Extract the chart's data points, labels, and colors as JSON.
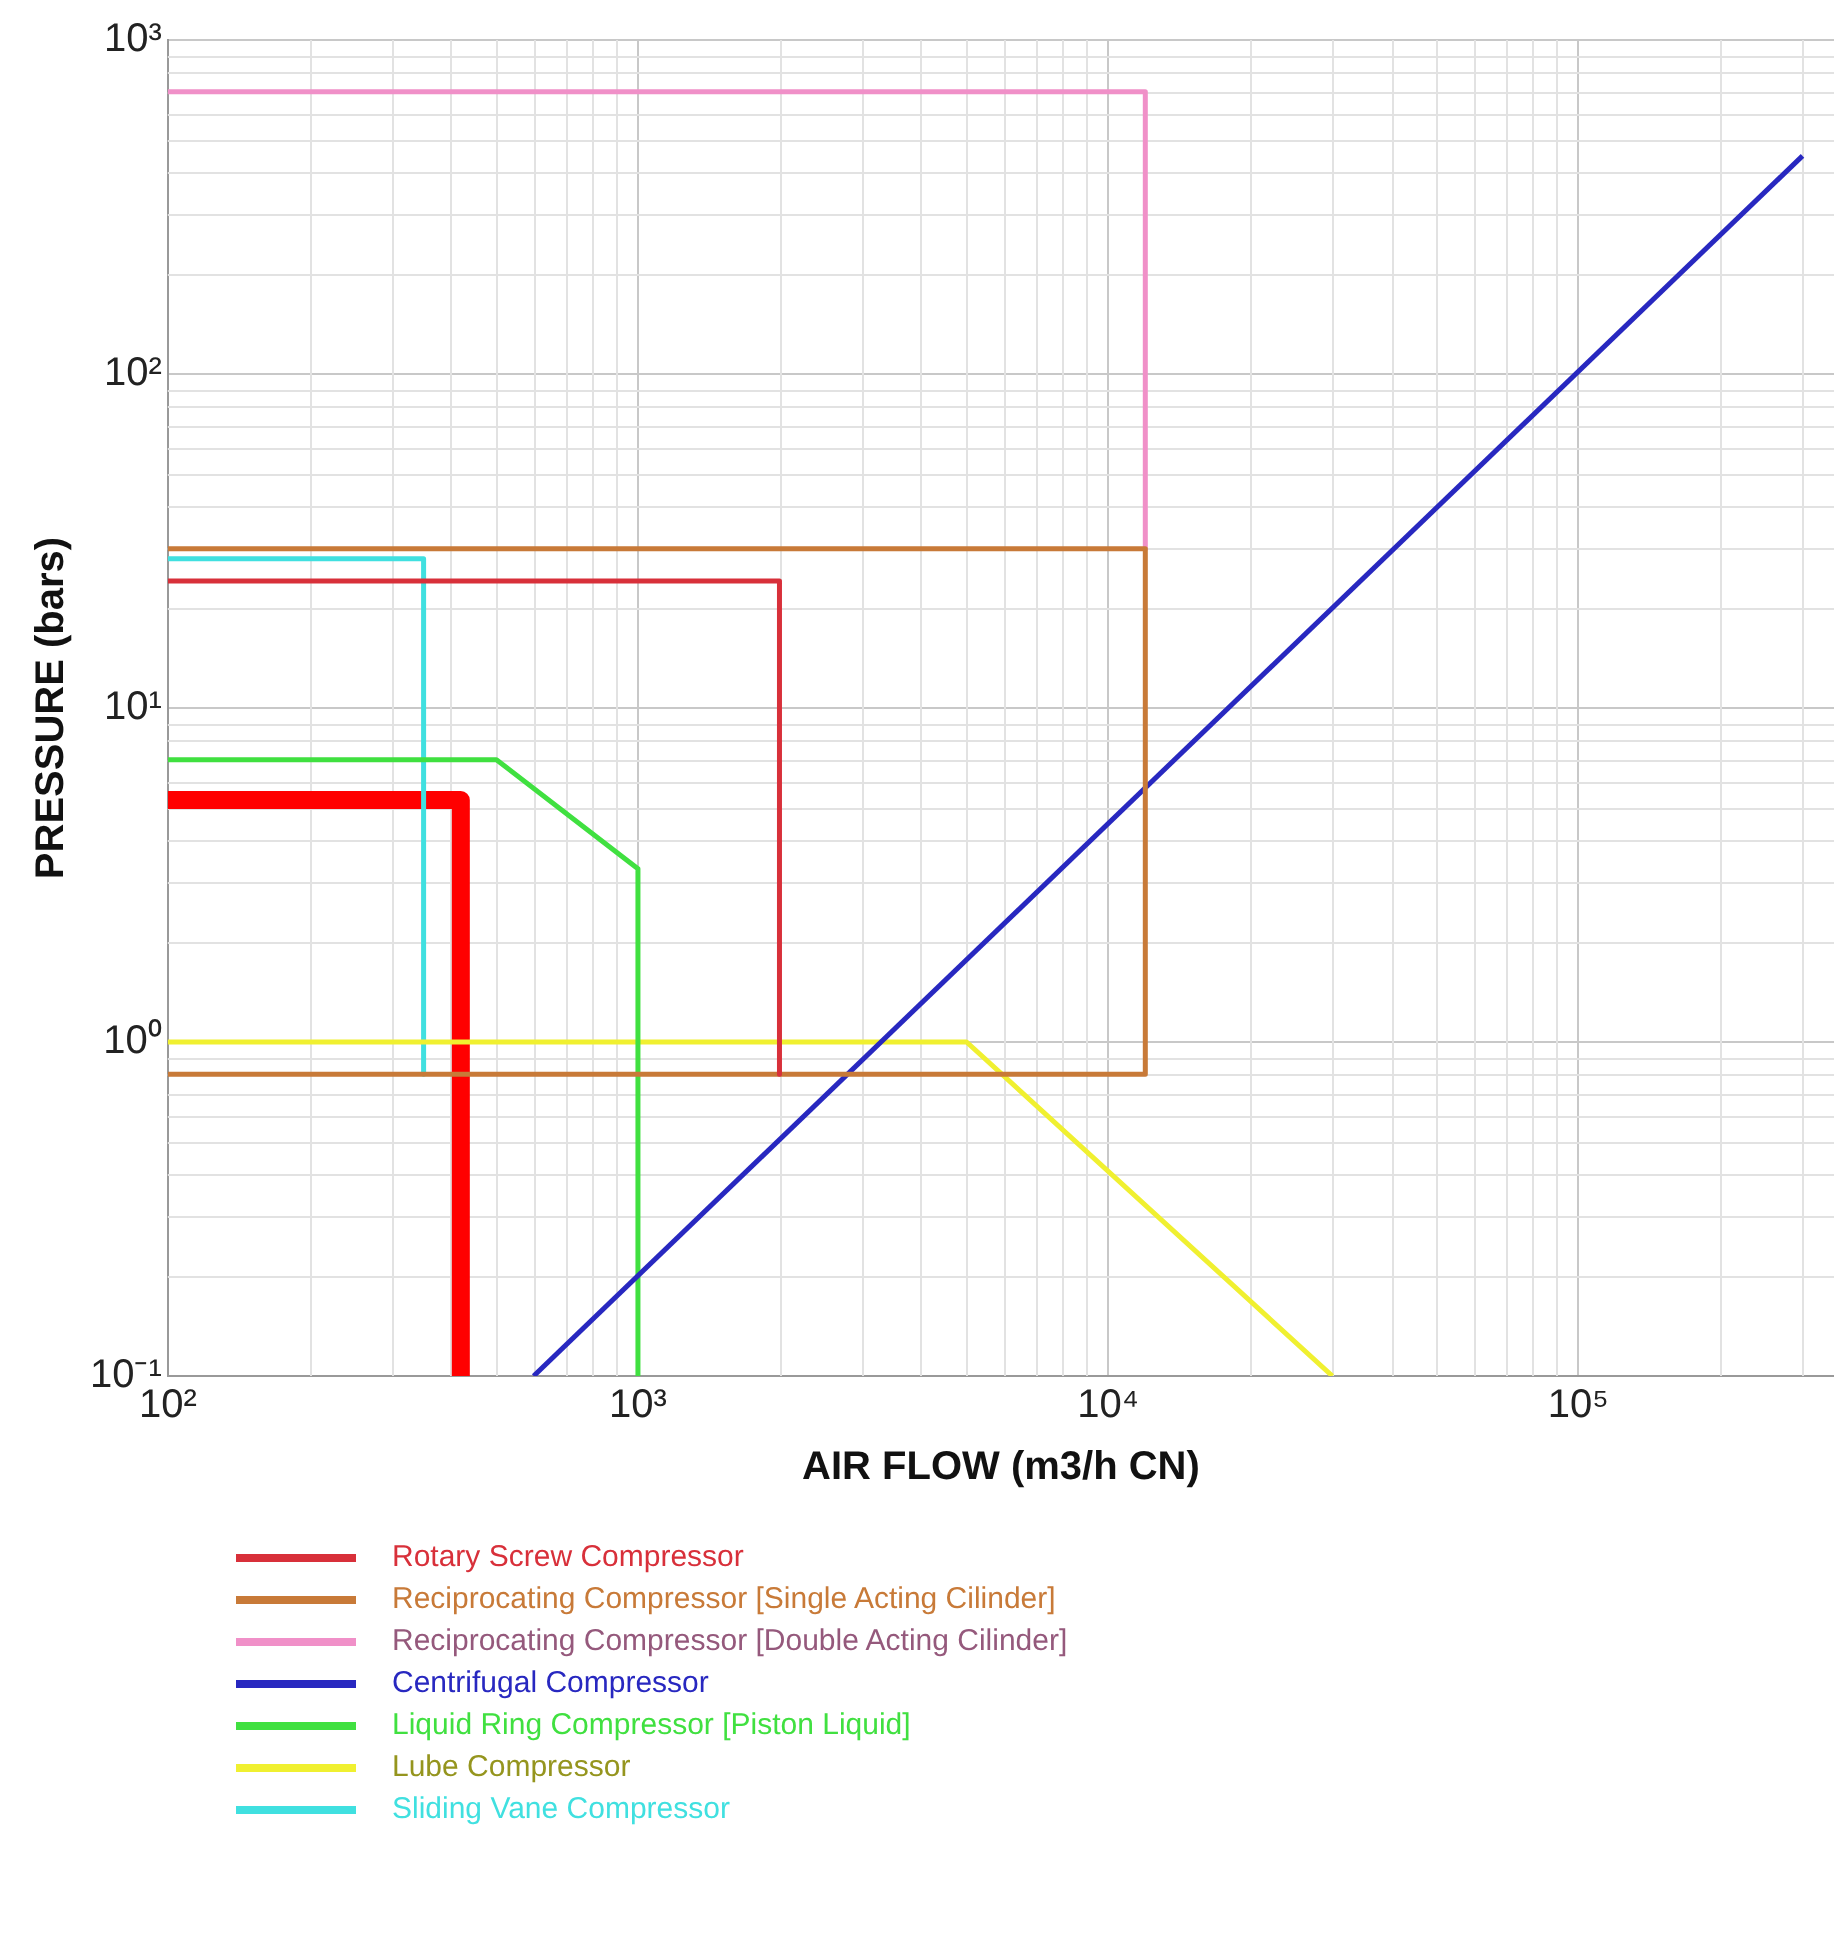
{
  "chart_data": {
    "type": "line",
    "xlabel": "AIR FLOW (m3/h CN)",
    "ylabel": "PRESSURE (bars)",
    "log": "xy",
    "grid": true,
    "legend": "bottom",
    "marker": "none",
    "line_style": "solid",
    "xlim": [
      100,
      350000
    ],
    "ylim": [
      0.1,
      1000
    ],
    "xticks": [
      {
        "value": 100,
        "label": "10²"
      },
      {
        "value": 1000,
        "label": "10³"
      },
      {
        "value": 10000,
        "label": "10⁴"
      },
      {
        "value": 100000,
        "label": "10⁵"
      }
    ],
    "yticks": [
      {
        "value": 0.1,
        "label": "10⁻¹"
      },
      {
        "value": 1,
        "label": "10⁰"
      },
      {
        "value": 10,
        "label": "10¹"
      },
      {
        "value": 100,
        "label": "10²"
      },
      {
        "value": 1000,
        "label": "10³"
      }
    ],
    "series": [
      {
        "name": "Rotary Screw Compressor",
        "color": "#d8303a",
        "x": [
          100,
          2000,
          2000
        ],
        "values": [
          24,
          24,
          0.8
        ]
      },
      {
        "name": "Reciprocating Compressor [Single Acting Cilinder]",
        "color": "#c87a38",
        "x": [
          100,
          12000,
          12000,
          100
        ],
        "values": [
          30,
          30,
          0.8,
          0.8
        ]
      },
      {
        "name": "Reciprocating Compressor [Double Acting Cilinder]",
        "color": "#f090c8",
        "x": [
          100,
          12000,
          12000
        ],
        "values": [
          700,
          700,
          30
        ]
      },
      {
        "name": "Centrifugal Compressor",
        "color": "#2828c0",
        "x": [
          600,
          300000
        ],
        "values": [
          0.1,
          450
        ]
      },
      {
        "name": "Liquid Ring Compressor [Piston Liquid]",
        "color": "#40e040",
        "x": [
          100,
          500,
          1000,
          1000
        ],
        "values": [
          7,
          7,
          3.3,
          0.1
        ]
      },
      {
        "name": "Lube Compressor",
        "color": "#f0f030",
        "x": [
          100,
          5000,
          30000
        ],
        "values": [
          1,
          1,
          0.1
        ]
      },
      {
        "name": "Sliding Vane Compressor",
        "color": "#40e0e0",
        "x": [
          100,
          350,
          350
        ],
        "values": [
          28,
          28,
          0.8
        ]
      },
      {
        "color": "#ff0000",
        "x": [
          100,
          420,
          420
        ],
        "values": [
          5.3,
          5.3,
          0.1
        ]
      }
    ]
  }
}
